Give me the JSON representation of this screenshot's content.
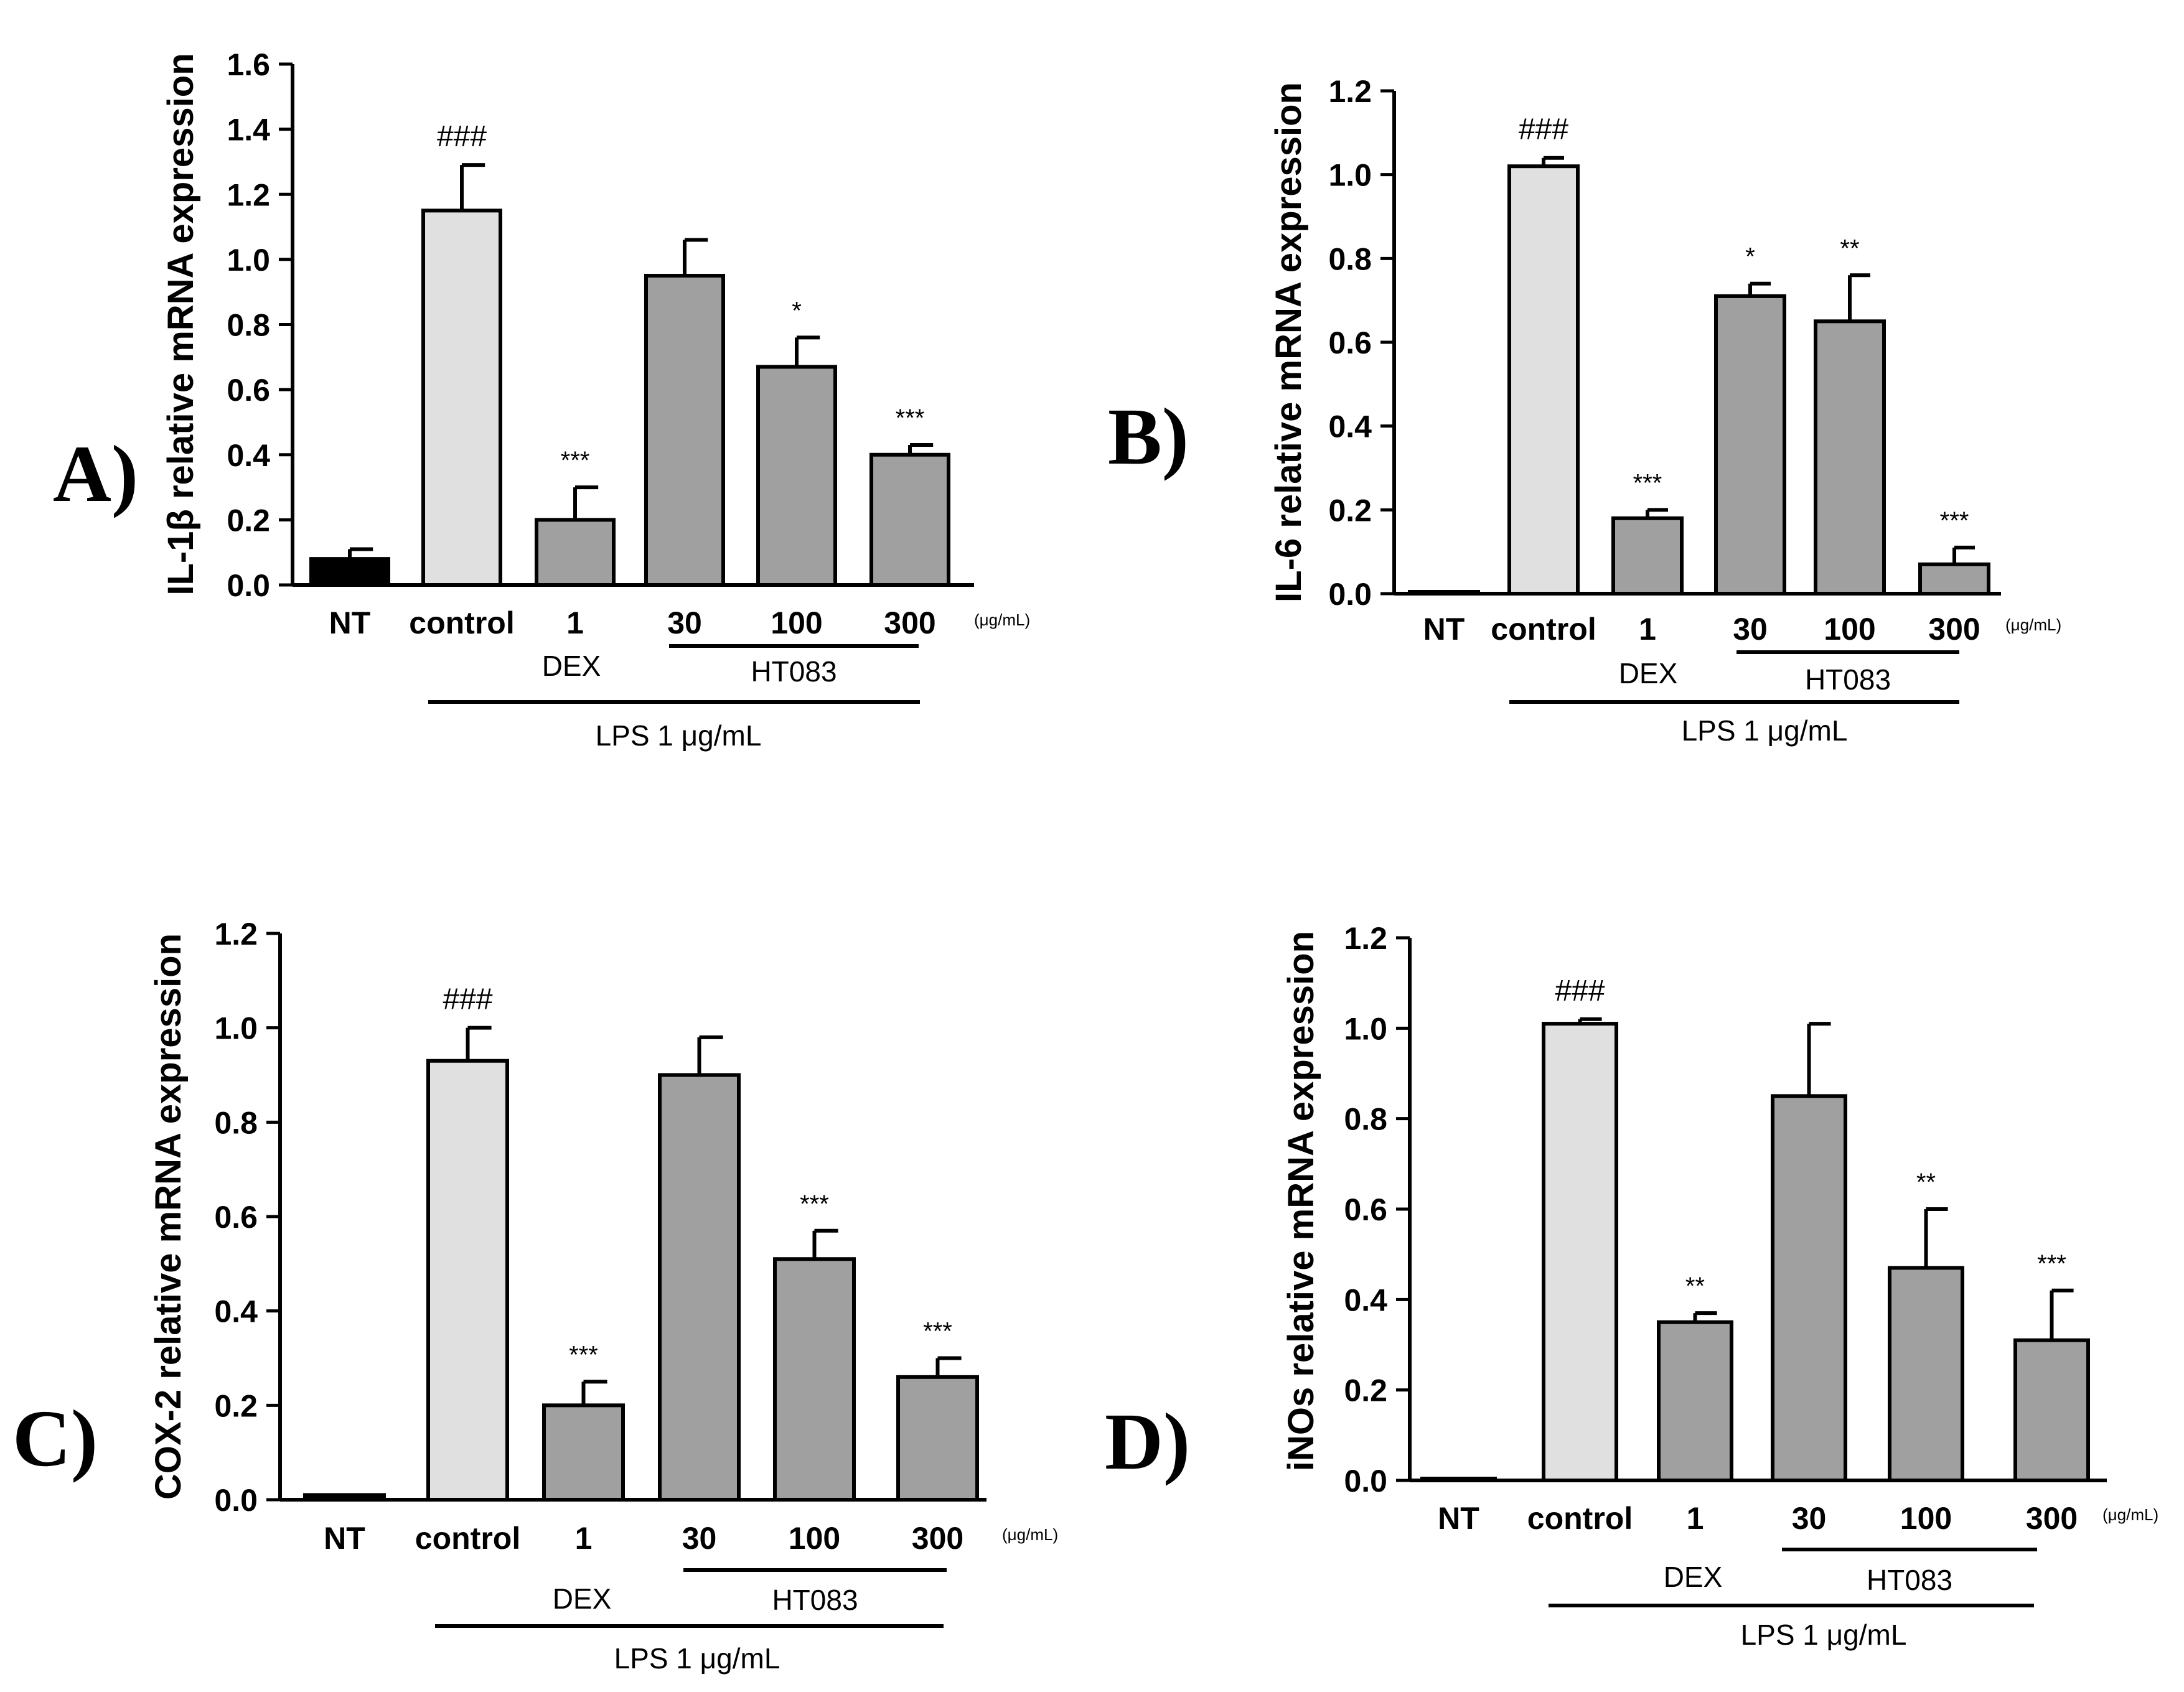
{
  "chart_data": [
    {
      "type": "bar",
      "panel_label": "A)",
      "ylabel": "IL-1β relative mRNA expression",
      "categories": [
        "NT",
        "control",
        "1",
        "30",
        "100",
        "300"
      ],
      "values": [
        0.08,
        1.15,
        0.2,
        0.95,
        0.67,
        0.4
      ],
      "errors": [
        0.03,
        0.14,
        0.1,
        0.11,
        0.09,
        0.03
      ],
      "significance": [
        "",
        "###",
        "***",
        "",
        "*",
        "***"
      ],
      "bar_colors": [
        "#000000",
        "#e0e0e0",
        "#a0a0a0",
        "#a0a0a0",
        "#a0a0a0",
        "#a0a0a0"
      ],
      "ylim": [
        0,
        1.6
      ],
      "yticks": [
        "0.0",
        "0.2",
        "0.4",
        "0.6",
        "0.8",
        "1.0",
        "1.2",
        "1.4",
        "1.6"
      ],
      "unit_label": "(μg/mL)",
      "group_dex": "DEX",
      "group_ht": "HT083",
      "group_lps": "LPS 1 μg/mL"
    },
    {
      "type": "bar",
      "panel_label": "B)",
      "ylabel": "IL-6 relative mRNA expression",
      "categories": [
        "NT",
        "control",
        "1",
        "30",
        "100",
        "300"
      ],
      "values": [
        0.0,
        1.02,
        0.18,
        0.71,
        0.65,
        0.07
      ],
      "errors": [
        0.0,
        0.02,
        0.02,
        0.03,
        0.11,
        0.04
      ],
      "significance": [
        "",
        "###",
        "***",
        "*",
        "**",
        "***"
      ],
      "bar_colors": [
        "#000000",
        "#e0e0e0",
        "#a0a0a0",
        "#a0a0a0",
        "#a0a0a0",
        "#a0a0a0"
      ],
      "ylim": [
        0,
        1.2
      ],
      "yticks": [
        "0.0",
        "0.2",
        "0.4",
        "0.6",
        "0.8",
        "1.0",
        "1.2"
      ],
      "unit_label": "(μg/mL)",
      "group_dex": "DEX",
      "group_ht": "HT083",
      "group_lps": "LPS 1 μg/mL"
    },
    {
      "type": "bar",
      "panel_label": "C)",
      "ylabel": "COX-2 relative mRNA expression",
      "categories": [
        "NT",
        "control",
        "1",
        "30",
        "100",
        "300"
      ],
      "values": [
        0.01,
        0.93,
        0.2,
        0.9,
        0.51,
        0.26
      ],
      "errors": [
        0.0,
        0.07,
        0.05,
        0.08,
        0.06,
        0.04
      ],
      "significance": [
        "",
        "###",
        "***",
        "",
        "***",
        "***"
      ],
      "bar_colors": [
        "#000000",
        "#e0e0e0",
        "#a0a0a0",
        "#a0a0a0",
        "#a0a0a0",
        "#a0a0a0"
      ],
      "ylim": [
        0,
        1.2
      ],
      "yticks": [
        "0.0",
        "0.2",
        "0.4",
        "0.6",
        "0.8",
        "1.0",
        "1.2"
      ],
      "unit_label": "(μg/mL)",
      "group_dex": "DEX",
      "group_ht": "HT083",
      "group_lps": "LPS 1 μg/mL"
    },
    {
      "type": "bar",
      "panel_label": "D)",
      "ylabel": "iNOs relative mRNA expression",
      "categories": [
        "NT",
        "control",
        "1",
        "30",
        "100",
        "300"
      ],
      "values": [
        0.0,
        1.01,
        0.35,
        0.85,
        0.47,
        0.31
      ],
      "errors": [
        0.0,
        0.01,
        0.02,
        0.16,
        0.13,
        0.11
      ],
      "significance": [
        "",
        "###",
        "**",
        "",
        "**",
        "***"
      ],
      "bar_colors": [
        "#000000",
        "#e0e0e0",
        "#a0a0a0",
        "#a0a0a0",
        "#a0a0a0",
        "#a0a0a0"
      ],
      "ylim": [
        0,
        1.2
      ],
      "yticks": [
        "0.0",
        "0.2",
        "0.4",
        "0.6",
        "0.8",
        "1.0",
        "1.2"
      ],
      "unit_label": "(μg/mL)",
      "group_dex": "DEX",
      "group_ht": "HT083",
      "group_lps": "LPS 1 μg/mL"
    }
  ]
}
